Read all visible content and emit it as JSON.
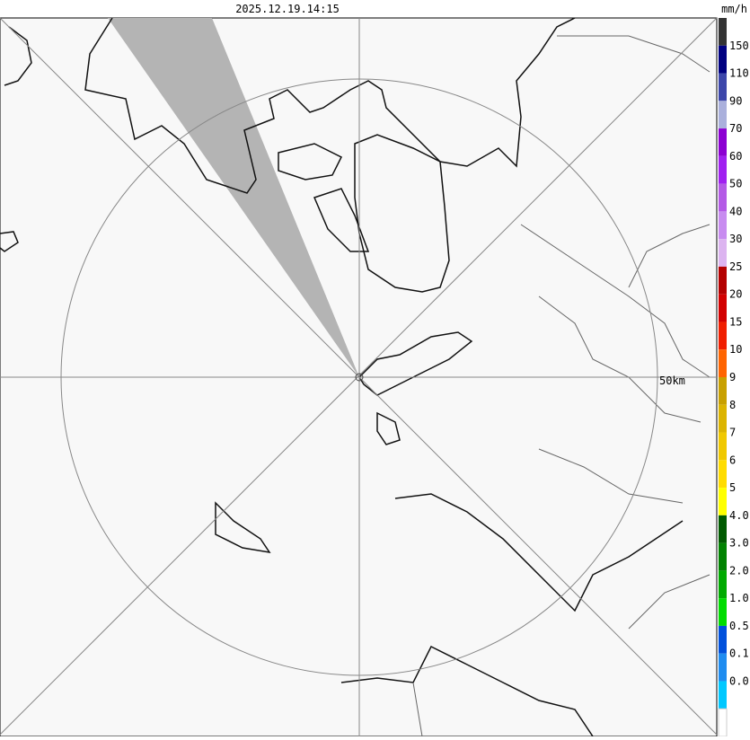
{
  "header": {
    "timestamp": "2025.12.19.14:15"
  },
  "map": {
    "range_label": "50km"
  },
  "legend": {
    "unit": "mm/h",
    "labels": [
      "150",
      "110",
      "90",
      "70",
      "60",
      "50",
      "40",
      "30",
      "25",
      "20",
      "15",
      "10",
      "9",
      "8",
      "7",
      "6",
      "5",
      "4.0",
      "3.0",
      "2.0",
      "1.0",
      "0.5",
      "0.1",
      "0.0"
    ],
    "colors": [
      "#333333",
      "#000080",
      "#3c46aa",
      "#aab0dc",
      "#8c00d2",
      "#a020f0",
      "#b45ae6",
      "#c88cf0",
      "#dcb4f0",
      "#b40000",
      "#d20000",
      "#f01e00",
      "#ff6400",
      "#c8a000",
      "#dcb400",
      "#f0c800",
      "#ffdc00",
      "#ffff00",
      "#005a00",
      "#008200",
      "#00aa00",
      "#00dc00",
      "#0050dc",
      "#1e8cf0",
      "#00c8ff",
      "#ffffff"
    ]
  }
}
